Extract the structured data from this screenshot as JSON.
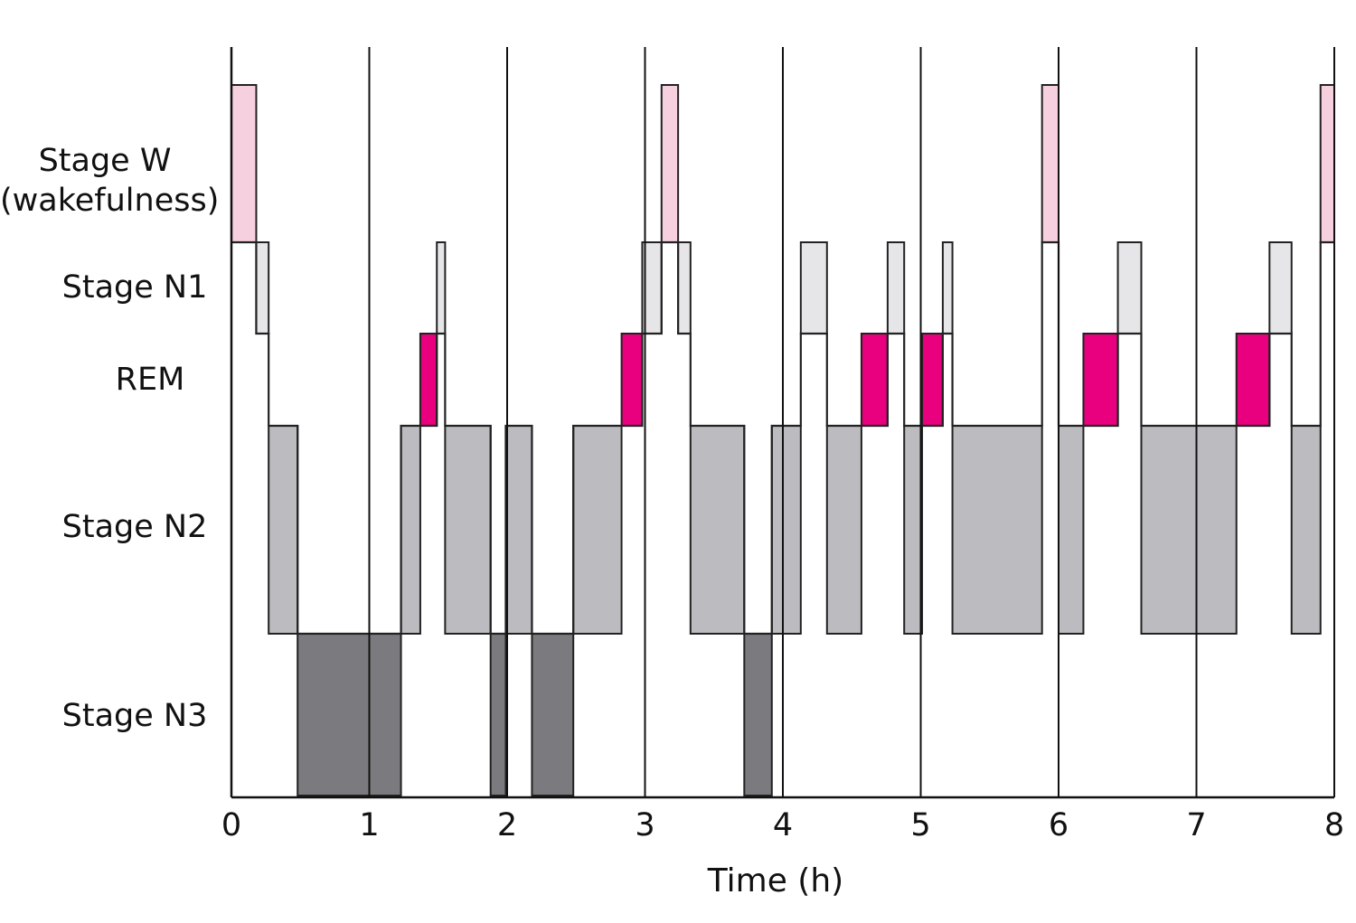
{
  "chart_data": {
    "type": "hypnogram",
    "xlabel": "Time (h)",
    "xlim": [
      0,
      8
    ],
    "x_ticks": [
      "0",
      "1",
      "2",
      "3",
      "4",
      "5",
      "6",
      "7",
      "8"
    ],
    "stages": [
      {
        "key": "W",
        "label_lines": [
          "Stage W",
          "(wakefulness)"
        ],
        "color": "#f7d0df"
      },
      {
        "key": "N1",
        "label_lines": [
          "Stage N1"
        ],
        "color": "#e6e6e8"
      },
      {
        "key": "REM",
        "label_lines": [
          "REM"
        ],
        "color": "#e8007e"
      },
      {
        "key": "N2",
        "label_lines": [
          "Stage N2"
        ],
        "color": "#bcbcc0"
      },
      {
        "key": "N3",
        "label_lines": [
          "Stage N3"
        ],
        "color": "#7b7b7f"
      }
    ],
    "segments": [
      {
        "stage": "W",
        "start": 0.0,
        "end": 0.18
      },
      {
        "stage": "N1",
        "start": 0.18,
        "end": 0.27
      },
      {
        "stage": "N2",
        "start": 0.27,
        "end": 0.48
      },
      {
        "stage": "N3",
        "start": 0.48,
        "end": 1.23
      },
      {
        "stage": "N2",
        "start": 1.23,
        "end": 1.37
      },
      {
        "stage": "REM",
        "start": 1.37,
        "end": 1.49
      },
      {
        "stage": "N1",
        "start": 1.49,
        "end": 1.55
      },
      {
        "stage": "N2",
        "start": 1.55,
        "end": 1.88
      },
      {
        "stage": "N3",
        "start": 1.88,
        "end": 1.99
      },
      {
        "stage": "N2",
        "start": 1.99,
        "end": 2.18
      },
      {
        "stage": "N3",
        "start": 2.18,
        "end": 2.48
      },
      {
        "stage": "N2",
        "start": 2.48,
        "end": 2.83
      },
      {
        "stage": "REM",
        "start": 2.83,
        "end": 2.98
      },
      {
        "stage": "N1",
        "start": 2.98,
        "end": 3.12
      },
      {
        "stage": "W",
        "start": 3.12,
        "end": 3.24
      },
      {
        "stage": "N1",
        "start": 3.24,
        "end": 3.33
      },
      {
        "stage": "N2",
        "start": 3.33,
        "end": 3.72
      },
      {
        "stage": "N3",
        "start": 3.72,
        "end": 3.92
      },
      {
        "stage": "N2",
        "start": 3.92,
        "end": 4.13
      },
      {
        "stage": "N1",
        "start": 4.13,
        "end": 4.32
      },
      {
        "stage": "N2",
        "start": 4.32,
        "end": 4.57
      },
      {
        "stage": "REM",
        "start": 4.57,
        "end": 4.76
      },
      {
        "stage": "N1",
        "start": 4.76,
        "end": 4.88
      },
      {
        "stage": "N2",
        "start": 4.88,
        "end": 5.01
      },
      {
        "stage": "REM",
        "start": 5.01,
        "end": 5.16
      },
      {
        "stage": "N1",
        "start": 5.16,
        "end": 5.23
      },
      {
        "stage": "N2",
        "start": 5.23,
        "end": 5.88
      },
      {
        "stage": "W",
        "start": 5.88,
        "end": 6.0
      },
      {
        "stage": "N2",
        "start": 6.0,
        "end": 6.18
      },
      {
        "stage": "REM",
        "start": 6.18,
        "end": 6.43
      },
      {
        "stage": "N1",
        "start": 6.43,
        "end": 6.6
      },
      {
        "stage": "N2",
        "start": 6.6,
        "end": 7.29
      },
      {
        "stage": "REM",
        "start": 7.29,
        "end": 7.53
      },
      {
        "stage": "N1",
        "start": 7.53,
        "end": 7.69
      },
      {
        "stage": "N2",
        "start": 7.69,
        "end": 7.9
      },
      {
        "stage": "W",
        "start": 7.9,
        "end": 8.0
      }
    ]
  }
}
